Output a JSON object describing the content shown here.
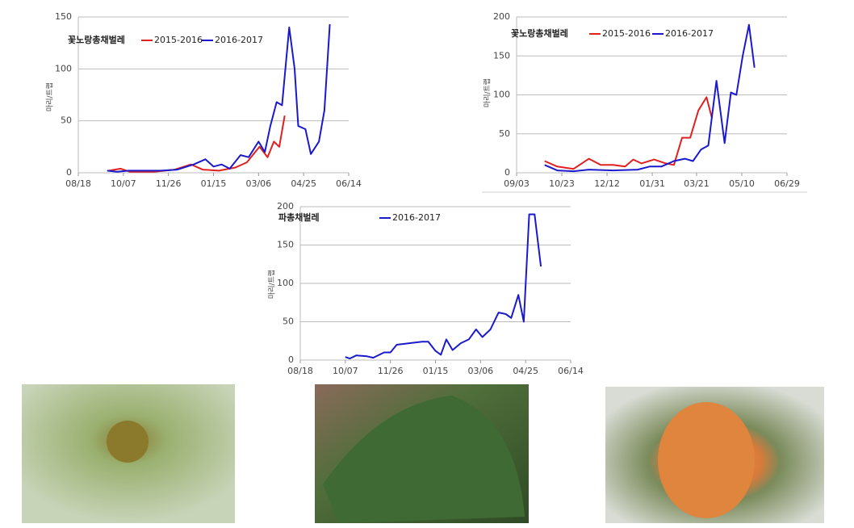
{
  "chart_data": [
    {
      "type": "line",
      "title": "꽃노랑총채벌레",
      "y_label": "마리/트랩",
      "xlim": [
        "08/18",
        "06/14"
      ],
      "xticks": [
        "08/18",
        "10/07",
        "11/26",
        "01/15",
        "03/06",
        "04/25",
        "06/14"
      ],
      "ylim": [
        0,
        150
      ],
      "yticks": [
        0,
        50,
        100,
        150
      ],
      "grid": true,
      "series": [
        {
          "name": "2015-2016",
          "color": "#e02020",
          "x": [
            "09/21",
            "10/04",
            "10/14",
            "11/10",
            "12/03",
            "12/21",
            "01/03",
            "01/21",
            "02/08",
            "02/21",
            "03/07",
            "03/16",
            "03/23",
            "03/29",
            "04/04"
          ],
          "values": [
            2,
            4,
            1,
            1,
            3,
            8,
            3,
            2,
            5,
            10,
            25,
            15,
            30,
            25,
            55
          ]
        },
        {
          "name": "2016-2017",
          "color": "#1a1acc",
          "x": [
            "09/19",
            "09/30",
            "10/13",
            "10/31",
            "11/18",
            "12/06",
            "12/24",
            "01/06",
            "01/15",
            "01/24",
            "02/02",
            "02/14",
            "02/23",
            "03/06",
            "03/13",
            "03/19",
            "03/26",
            "04/01",
            "04/09",
            "04/15",
            "04/19",
            "04/27",
            "05/03",
            "05/12",
            "05/18",
            "05/24"
          ],
          "values": [
            2,
            1,
            2,
            2,
            2,
            3,
            8,
            13,
            6,
            8,
            4,
            17,
            15,
            30,
            20,
            45,
            68,
            65,
            140,
            100,
            45,
            42,
            18,
            30,
            60,
            143
          ]
        }
      ]
    },
    {
      "type": "line",
      "title": "꽃노랑총채벌레",
      "y_label": "마리/트랩",
      "xlim": [
        "09/03",
        "06/29"
      ],
      "xticks": [
        "09/03",
        "10/23",
        "12/12",
        "01/31",
        "03/21",
        "05/10",
        "06/29"
      ],
      "ylim": [
        0,
        200
      ],
      "yticks": [
        0,
        50,
        100,
        150,
        200
      ],
      "grid": true,
      "series": [
        {
          "name": "2015-2016",
          "color": "#e02020",
          "x": [
            "10/04",
            "10/18",
            "11/05",
            "11/22",
            "12/05",
            "12/19",
            "01/01",
            "01/10",
            "01/19",
            "02/02",
            "02/15",
            "02/24",
            "03/05",
            "03/14",
            "03/23",
            "04/01",
            "04/07"
          ],
          "values": [
            15,
            8,
            5,
            18,
            10,
            10,
            8,
            17,
            12,
            17,
            12,
            10,
            45,
            45,
            80,
            97,
            70
          ]
        },
        {
          "name": "2016-2017",
          "color": "#1a1acc",
          "x": [
            "10/04",
            "10/18",
            "11/05",
            "11/22",
            "12/19",
            "01/15",
            "01/28",
            "02/10",
            "02/24",
            "03/08",
            "03/17",
            "03/26",
            "04/03",
            "04/12",
            "04/21",
            "04/28",
            "05/04",
            "05/11",
            "05/18",
            "05/24"
          ],
          "values": [
            10,
            3,
            2,
            4,
            3,
            4,
            8,
            8,
            15,
            18,
            15,
            30,
            35,
            118,
            38,
            103,
            100,
            150,
            190,
            135
          ]
        }
      ]
    },
    {
      "type": "line",
      "title": "파총채벌레",
      "y_label": "마리/트랩",
      "xlim": [
        "08/18",
        "06/14"
      ],
      "xticks": [
        "08/18",
        "10/07",
        "11/26",
        "01/15",
        "03/06",
        "04/25",
        "06/14"
      ],
      "ylim": [
        0,
        200
      ],
      "yticks": [
        0,
        50,
        100,
        150,
        200
      ],
      "grid": true,
      "series": [
        {
          "name": "2016-2017",
          "color": "#1a1acc",
          "x": [
            "10/07",
            "10/12",
            "10/19",
            "10/31",
            "11/07",
            "11/19",
            "11/26",
            "12/03",
            "12/17",
            "12/31",
            "01/07",
            "01/15",
            "01/21",
            "01/27",
            "02/03",
            "02/12",
            "02/21",
            "03/01",
            "03/08",
            "03/17",
            "03/26",
            "04/03",
            "04/09",
            "04/17",
            "04/23",
            "04/29",
            "05/05",
            "05/12"
          ],
          "values": [
            4,
            2,
            6,
            5,
            3,
            10,
            10,
            20,
            22,
            24,
            24,
            12,
            7,
            27,
            13,
            22,
            27,
            40,
            30,
            40,
            62,
            60,
            55,
            85,
            50,
            190,
            190,
            122
          ]
        }
      ]
    }
  ]
}
